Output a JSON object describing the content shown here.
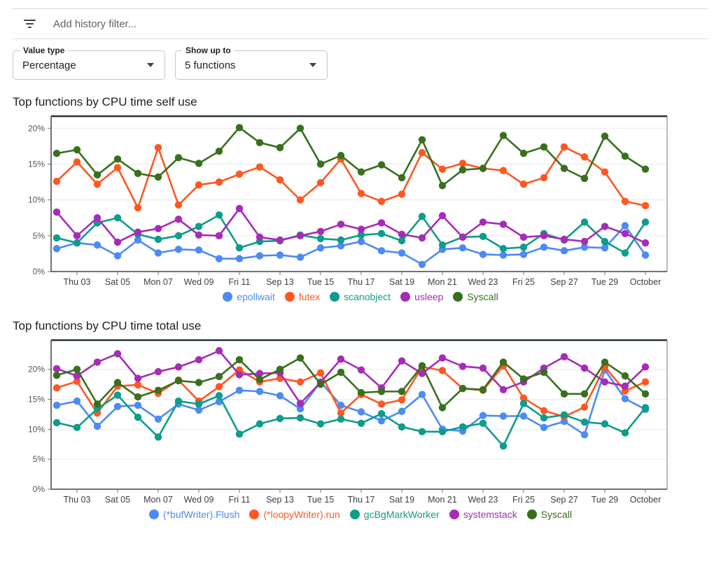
{
  "filter_bar": {
    "placeholder": "Add history filter..."
  },
  "controls": [
    {
      "label": "Value type",
      "value": "Percentage"
    },
    {
      "label": "Show up to",
      "value": "5 functions"
    }
  ],
  "x_labels": [
    "Thu 03",
    "Sat 05",
    "Mon 07",
    "Wed 09",
    "Fri 11",
    "Sep 13",
    "Tue 15",
    "Thu 17",
    "Sat 19",
    "Mon 21",
    "Wed 23",
    "Fri 25",
    "Sep 27",
    "Tue 29",
    "October"
  ],
  "chart_data": [
    {
      "type": "line",
      "title": "Top functions by CPU time self use",
      "y_ticks": [
        "0%",
        "5%",
        "10%",
        "15%",
        "20%"
      ],
      "y_tick_values": [
        0,
        5,
        10,
        15,
        20
      ],
      "ylim": [
        0,
        21.3
      ],
      "grid": true,
      "legend_position": "bottom",
      "categories": [
        "Thu 03",
        "Sat 05",
        "Mon 07",
        "Wed 09",
        "Fri 11",
        "Sep 13",
        "Tue 15",
        "Thu 17",
        "Sat 19",
        "Mon 21",
        "Wed 23",
        "Fri 25",
        "Sep 27",
        "Tue 29",
        "October"
      ],
      "series": [
        {
          "name": "epollwait",
          "color": "#4C8BF5",
          "values": [
            3.2,
            4.0,
            3.7,
            2.2,
            4.4,
            2.6,
            3.1,
            3.0,
            1.8,
            1.8,
            2.2,
            2.3,
            2.0,
            3.3,
            3.6,
            4.2,
            2.9,
            2.6,
            1.0,
            3.1,
            3.3,
            2.4,
            2.3,
            2.4,
            3.4,
            2.9,
            3.4,
            3.3,
            6.4,
            2.3
          ]
        },
        {
          "name": "futex",
          "color": "#FF5722",
          "values": [
            12.6,
            15.3,
            12.2,
            14.5,
            8.9,
            17.3,
            9.3,
            12.1,
            12.5,
            13.6,
            14.6,
            12.8,
            10.0,
            12.4,
            15.7,
            10.9,
            9.8,
            10.8,
            16.6,
            14.3,
            15.1,
            14.4,
            14.1,
            12.2,
            13.1,
            17.4,
            16.0,
            13.9,
            9.8,
            9.2
          ]
        },
        {
          "name": "scanobject",
          "color": "#0E9C8B",
          "values": [
            4.7,
            4.0,
            6.8,
            7.5,
            5.2,
            4.5,
            5.0,
            6.3,
            7.9,
            3.3,
            4.2,
            4.3,
            5.1,
            4.6,
            4.4,
            5.1,
            5.3,
            4.3,
            7.7,
            3.7,
            4.8,
            4.9,
            3.2,
            3.4,
            5.3,
            4.4,
            6.9,
            4.2,
            2.6,
            6.9
          ]
        },
        {
          "name": "usleep",
          "color": "#A62CB8",
          "values": [
            8.3,
            5.0,
            7.5,
            4.1,
            5.5,
            6.0,
            7.3,
            5.1,
            5.0,
            8.8,
            4.8,
            4.4,
            5.0,
            5.6,
            6.6,
            5.9,
            6.8,
            5.2,
            4.7,
            7.8,
            4.8,
            6.9,
            6.6,
            4.8,
            5.0,
            4.5,
            4.2,
            6.3,
            5.3,
            4.0
          ]
        },
        {
          "name": "Syscall",
          "color": "#38701D",
          "values": [
            16.5,
            17.0,
            13.5,
            15.7,
            13.7,
            13.2,
            15.9,
            15.1,
            16.8,
            20.1,
            18.0,
            17.3,
            20.0,
            15.0,
            16.2,
            13.9,
            14.9,
            13.1,
            18.4,
            12.0,
            14.2,
            14.4,
            19.0,
            16.5,
            17.4,
            14.4,
            13.0,
            18.9,
            16.1,
            14.3
          ]
        }
      ]
    },
    {
      "type": "line",
      "title": "Top functions by CPU time total use",
      "y_ticks": [
        "0%",
        "5%",
        "10%",
        "15%",
        "20%"
      ],
      "y_tick_values": [
        0,
        5,
        10,
        15,
        20
      ],
      "ylim": [
        0,
        24.4
      ],
      "grid": true,
      "legend_position": "bottom",
      "categories": [
        "Thu 03",
        "Sat 05",
        "Mon 07",
        "Wed 09",
        "Fri 11",
        "Sep 13",
        "Tue 15",
        "Thu 17",
        "Sat 19",
        "Mon 21",
        "Wed 23",
        "Fri 25",
        "Sep 27",
        "Tue 29",
        "October"
      ],
      "series": [
        {
          "name": "(*bufWriter).Flush",
          "color": "#4C8BF5",
          "values": [
            14.0,
            14.7,
            10.5,
            13.8,
            14.0,
            11.7,
            14.2,
            13.2,
            14.6,
            16.5,
            16.3,
            15.6,
            13.4,
            17.9,
            14.0,
            12.9,
            11.4,
            13.0,
            15.8,
            10.0,
            9.7,
            12.3,
            12.2,
            12.2,
            10.3,
            11.3,
            9.1,
            19.9,
            15.1,
            13.3
          ]
        },
        {
          "name": "(*loopyWriter).run",
          "color": "#FF5722",
          "values": [
            16.9,
            18.0,
            12.7,
            17.2,
            17.4,
            16.0,
            18.2,
            14.7,
            17.1,
            19.9,
            17.9,
            18.5,
            17.9,
            19.4,
            12.7,
            15.8,
            14.2,
            14.9,
            20.4,
            19.8,
            16.8,
            16.5,
            20.6,
            15.2,
            13.1,
            12.1,
            13.7,
            20.4,
            16.4,
            17.9
          ]
        },
        {
          "name": "gcBgMarkWorker",
          "color": "#0E9C8B",
          "values": [
            11.1,
            10.3,
            13.4,
            15.7,
            12.0,
            8.7,
            14.7,
            14.2,
            15.6,
            9.2,
            10.9,
            11.8,
            11.9,
            10.9,
            11.7,
            11.0,
            12.6,
            10.4,
            9.6,
            9.6,
            10.4,
            11.0,
            7.2,
            14.3,
            11.9,
            12.4,
            11.2,
            10.9,
            9.4,
            13.6
          ]
        },
        {
          "name": "systemstack",
          "color": "#A62CB8",
          "values": [
            20.1,
            18.9,
            21.2,
            22.6,
            18.5,
            19.6,
            20.4,
            21.6,
            23.1,
            19.1,
            19.3,
            19.4,
            14.3,
            17.8,
            21.7,
            19.9,
            16.9,
            21.4,
            19.3,
            21.9,
            20.5,
            20.2,
            16.6,
            17.9,
            20.2,
            22.1,
            20.2,
            17.9,
            17.2,
            20.4
          ]
        },
        {
          "name": "Syscall",
          "color": "#38701D",
          "values": [
            19.0,
            20.0,
            14.2,
            17.8,
            15.4,
            16.5,
            18.1,
            17.8,
            18.8,
            21.6,
            18.3,
            20.0,
            21.9,
            17.5,
            19.5,
            16.1,
            16.3,
            16.3,
            20.6,
            13.6,
            16.8,
            16.6,
            21.2,
            18.4,
            19.5,
            15.9,
            15.9,
            21.2,
            18.9,
            15.9
          ]
        }
      ]
    }
  ]
}
